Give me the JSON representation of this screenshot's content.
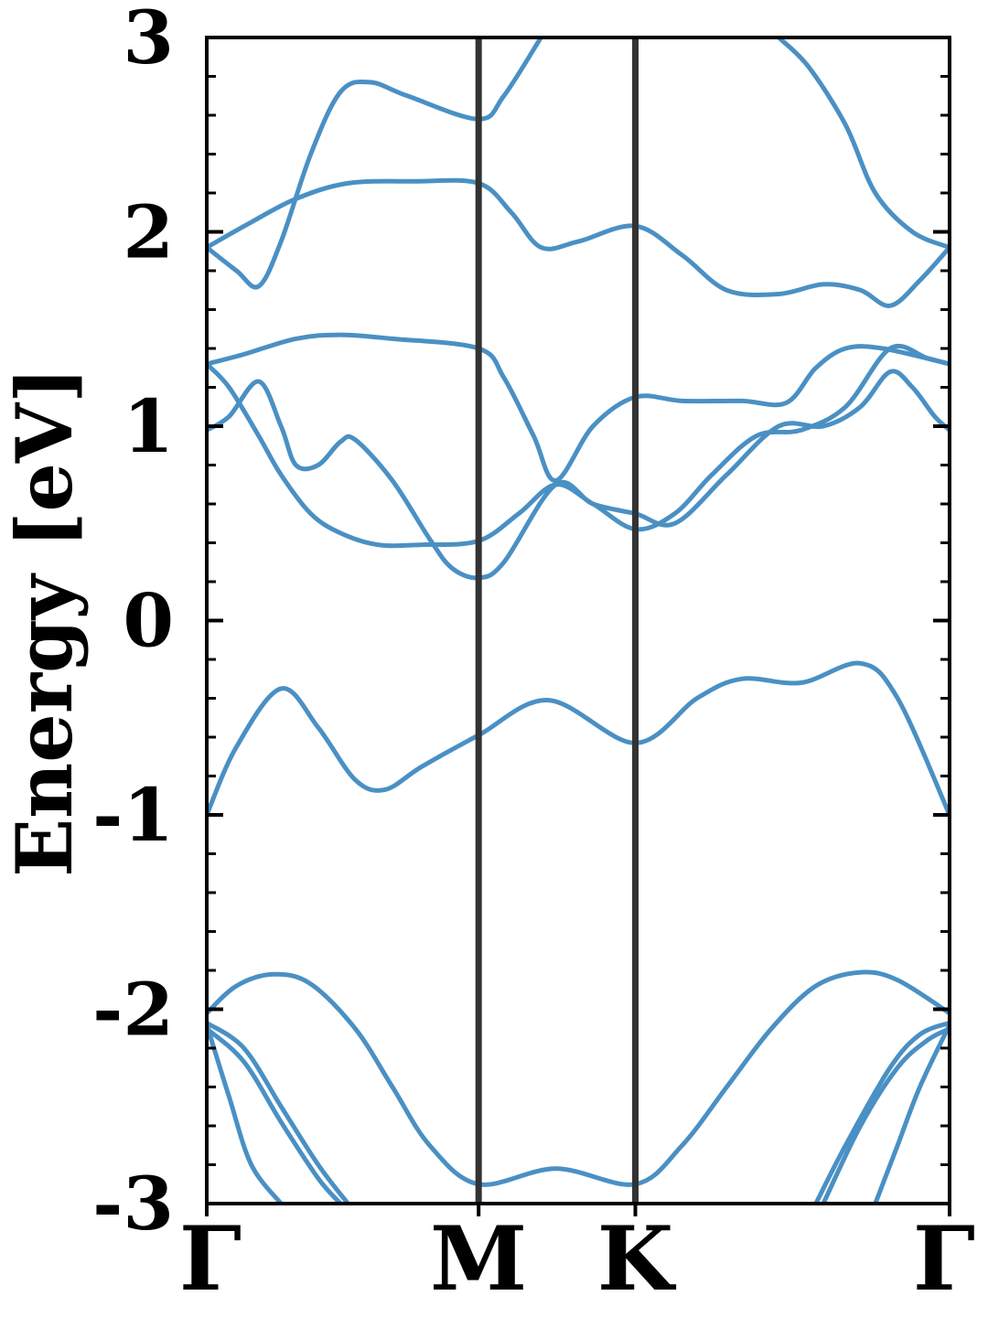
{
  "chart_data": {
    "type": "line",
    "title": "",
    "xlabel": "",
    "ylabel": "Energy [eV]",
    "ylim": [
      -3,
      3
    ],
    "xlim": [
      0,
      1
    ],
    "yticks": [
      -3,
      -2,
      -1,
      0,
      1,
      2,
      3
    ],
    "ytick_labels": [
      "-3",
      "-2",
      "-1",
      "0",
      "1",
      "2",
      "3"
    ],
    "y_minor_step": 0.2,
    "kpoints": [
      {
        "label": "Γ",
        "x": 0.0
      },
      {
        "label": "M",
        "x": 0.366
      },
      {
        "label": "K",
        "x": 0.577
      },
      {
        "label": "Γ",
        "x": 1.0
      }
    ],
    "grid": false,
    "legend": "none",
    "line_color": "#4a90c4",
    "divider_color": "#333333",
    "series": [
      {
        "values": [
          [
            0,
            -2.02
          ],
          [
            0.04,
            -1.88
          ],
          [
            0.09,
            -1.82
          ],
          [
            0.14,
            -1.87
          ],
          [
            0.2,
            -2.1
          ],
          [
            0.25,
            -2.4
          ],
          [
            0.3,
            -2.7
          ],
          [
            0.366,
            -2.9
          ],
          [
            0.47,
            -2.82
          ],
          [
            0.577,
            -2.9
          ],
          [
            0.64,
            -2.7
          ],
          [
            0.7,
            -2.4
          ],
          [
            0.76,
            -2.1
          ],
          [
            0.82,
            -1.88
          ],
          [
            0.88,
            -1.81
          ],
          [
            0.93,
            -1.85
          ],
          [
            1.0,
            -2.02
          ]
        ]
      },
      {
        "values": [
          [
            0,
            -2.07
          ],
          [
            0.05,
            -2.2
          ],
          [
            0.1,
            -2.5
          ],
          [
            0.15,
            -2.8
          ],
          [
            0.19,
            -3.0
          ]
        ]
      },
      {
        "values": [
          [
            0,
            -2.1
          ],
          [
            0.05,
            -2.27
          ],
          [
            0.1,
            -2.58
          ],
          [
            0.15,
            -2.87
          ],
          [
            0.18,
            -3.0
          ]
        ]
      },
      {
        "values": [
          [
            0,
            -2.08
          ],
          [
            0.03,
            -2.45
          ],
          [
            0.06,
            -2.8
          ],
          [
            0.1,
            -3.0
          ]
        ]
      },
      {
        "values": [
          [
            0.82,
            -3.0
          ],
          [
            0.86,
            -2.7
          ],
          [
            0.92,
            -2.3
          ],
          [
            0.96,
            -2.13
          ],
          [
            1.0,
            -2.07
          ]
        ]
      },
      {
        "values": [
          [
            0.83,
            -3.0
          ],
          [
            0.88,
            -2.6
          ],
          [
            0.93,
            -2.3
          ],
          [
            0.97,
            -2.16
          ],
          [
            1.0,
            -2.1
          ]
        ]
      },
      {
        "values": [
          [
            0.9,
            -3.0
          ],
          [
            0.93,
            -2.7
          ],
          [
            0.96,
            -2.4
          ],
          [
            1.0,
            -2.08
          ]
        ]
      },
      {
        "values": [
          [
            0,
            -1.0
          ],
          [
            0.04,
            -0.65
          ],
          [
            0.1,
            -0.35
          ],
          [
            0.15,
            -0.55
          ],
          [
            0.2,
            -0.82
          ],
          [
            0.24,
            -0.87
          ],
          [
            0.29,
            -0.75
          ],
          [
            0.366,
            -0.59
          ],
          [
            0.46,
            -0.41
          ],
          [
            0.577,
            -0.63
          ],
          [
            0.66,
            -0.4
          ],
          [
            0.72,
            -0.3
          ],
          [
            0.8,
            -0.32
          ],
          [
            0.88,
            -0.22
          ],
          [
            0.93,
            -0.4
          ],
          [
            1.0,
            -1.0
          ]
        ]
      },
      {
        "values": [
          [
            0,
            0.98
          ],
          [
            0.03,
            1.05
          ],
          [
            0.07,
            1.23
          ],
          [
            0.1,
            1.0
          ],
          [
            0.12,
            0.8
          ],
          [
            0.15,
            0.8
          ],
          [
            0.18,
            0.92
          ],
          [
            0.2,
            0.93
          ],
          [
            0.25,
            0.72
          ],
          [
            0.3,
            0.42
          ],
          [
            0.33,
            0.27
          ],
          [
            0.366,
            0.22
          ],
          [
            0.4,
            0.3
          ],
          [
            0.47,
            0.7
          ],
          [
            0.52,
            0.6
          ],
          [
            0.577,
            0.55
          ],
          [
            0.63,
            0.5
          ],
          [
            0.7,
            0.75
          ],
          [
            0.77,
            1.0
          ],
          [
            0.83,
            1.0
          ],
          [
            0.88,
            1.1
          ],
          [
            0.92,
            1.28
          ],
          [
            0.95,
            1.2
          ],
          [
            0.98,
            1.05
          ],
          [
            1.0,
            0.98
          ]
        ]
      },
      {
        "values": [
          [
            0,
            1.32
          ],
          [
            0.03,
            1.2
          ],
          [
            0.07,
            0.95
          ],
          [
            0.1,
            0.75
          ],
          [
            0.14,
            0.55
          ],
          [
            0.18,
            0.45
          ],
          [
            0.23,
            0.39
          ],
          [
            0.29,
            0.39
          ],
          [
            0.366,
            0.41
          ],
          [
            0.42,
            0.55
          ],
          [
            0.47,
            0.7
          ],
          [
            0.52,
            0.6
          ],
          [
            0.577,
            0.47
          ],
          [
            0.63,
            0.55
          ],
          [
            0.68,
            0.75
          ],
          [
            0.74,
            0.95
          ],
          [
            0.8,
            0.98
          ],
          [
            0.86,
            1.1
          ],
          [
            0.92,
            1.4
          ],
          [
            0.97,
            1.35
          ],
          [
            1.0,
            1.32
          ]
        ]
      },
      {
        "values": [
          [
            0,
            1.32
          ],
          [
            0.05,
            1.37
          ],
          [
            0.12,
            1.45
          ],
          [
            0.18,
            1.47
          ],
          [
            0.25,
            1.45
          ],
          [
            0.366,
            1.4
          ],
          [
            0.4,
            1.25
          ],
          [
            0.44,
            0.95
          ],
          [
            0.47,
            0.72
          ],
          [
            0.52,
            1.0
          ],
          [
            0.577,
            1.15
          ],
          [
            0.64,
            1.13
          ],
          [
            0.72,
            1.13
          ],
          [
            0.78,
            1.12
          ],
          [
            0.82,
            1.3
          ],
          [
            0.86,
            1.4
          ],
          [
            0.91,
            1.4
          ],
          [
            1.0,
            1.32
          ]
        ]
      },
      {
        "values": [
          [
            0,
            1.92
          ],
          [
            0.04,
            1.8
          ],
          [
            0.07,
            1.72
          ],
          [
            0.1,
            1.95
          ],
          [
            0.14,
            2.4
          ],
          [
            0.18,
            2.72
          ],
          [
            0.22,
            2.77
          ],
          [
            0.27,
            2.7
          ],
          [
            0.366,
            2.58
          ],
          [
            0.4,
            2.7
          ],
          [
            0.45,
            3.0
          ]
        ]
      },
      {
        "values": [
          [
            0,
            1.92
          ],
          [
            0.06,
            2.05
          ],
          [
            0.12,
            2.17
          ],
          [
            0.19,
            2.25
          ],
          [
            0.28,
            2.26
          ],
          [
            0.366,
            2.25
          ],
          [
            0.41,
            2.1
          ],
          [
            0.45,
            1.92
          ],
          [
            0.5,
            1.95
          ],
          [
            0.577,
            2.03
          ],
          [
            0.64,
            1.88
          ],
          [
            0.7,
            1.7
          ],
          [
            0.77,
            1.68
          ],
          [
            0.83,
            1.73
          ],
          [
            0.88,
            1.7
          ],
          [
            0.92,
            1.62
          ],
          [
            0.96,
            1.75
          ],
          [
            1.0,
            1.92
          ]
        ]
      },
      {
        "values": [
          [
            0.77,
            3.0
          ],
          [
            0.81,
            2.85
          ],
          [
            0.86,
            2.55
          ],
          [
            0.9,
            2.2
          ],
          [
            0.95,
            2.0
          ],
          [
            1.0,
            1.92
          ]
        ]
      }
    ]
  }
}
